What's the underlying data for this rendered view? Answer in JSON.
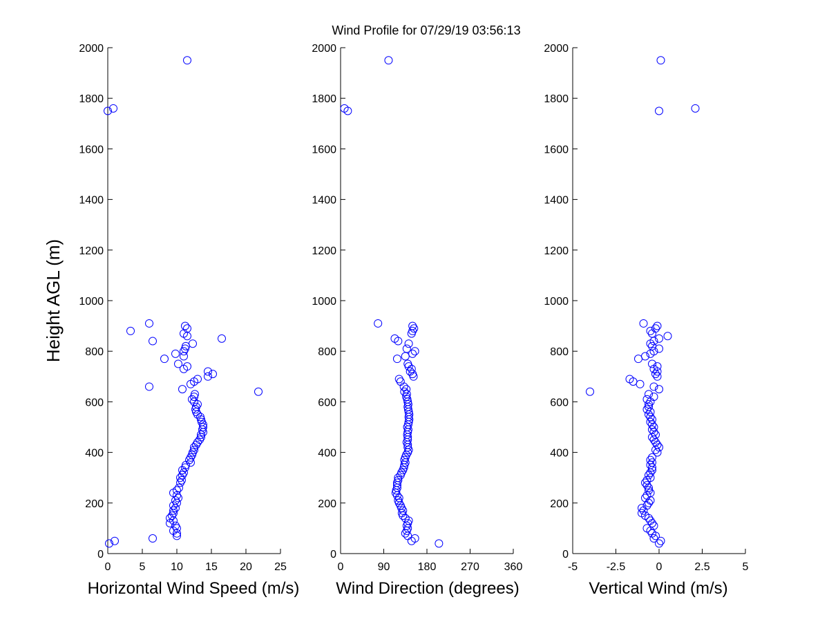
{
  "chart_data": {
    "type": "scatter",
    "title": "Wind Profile for  07/29/19 03:56:13",
    "ylabel": "Height AGL (m)",
    "ylim": [
      0,
      2000
    ],
    "yticks": [
      0,
      200,
      400,
      600,
      800,
      1000,
      1200,
      1400,
      1600,
      1800,
      2000
    ],
    "marker_color": "#0000ff",
    "panels": [
      {
        "name": "speed",
        "xlabel": "Horizontal Wind Speed (m/s)",
        "xlim": [
          0,
          25
        ],
        "xticks": [
          0,
          5,
          10,
          15,
          20,
          25
        ],
        "xtick_labels": [
          "0",
          "5",
          "10",
          "15",
          "20",
          "25"
        ],
        "points": [
          [
            0.2,
            40
          ],
          [
            1.0,
            50
          ],
          [
            6.5,
            60
          ],
          [
            10.0,
            70
          ],
          [
            10.0,
            80
          ],
          [
            9.5,
            90
          ],
          [
            10.0,
            100
          ],
          [
            9.8,
            110
          ],
          [
            9.0,
            120
          ],
          [
            9.5,
            130
          ],
          [
            9.0,
            140
          ],
          [
            9.3,
            150
          ],
          [
            9.5,
            160
          ],
          [
            9.5,
            170
          ],
          [
            9.8,
            180
          ],
          [
            9.5,
            190
          ],
          [
            10.0,
            200
          ],
          [
            9.8,
            210
          ],
          [
            10.2,
            220
          ],
          [
            10.0,
            230
          ],
          [
            9.5,
            240
          ],
          [
            10.0,
            250
          ],
          [
            10.3,
            260
          ],
          [
            10.5,
            280
          ],
          [
            10.7,
            290
          ],
          [
            10.5,
            300
          ],
          [
            10.8,
            310
          ],
          [
            11.0,
            320
          ],
          [
            10.8,
            330
          ],
          [
            11.2,
            340
          ],
          [
            11.3,
            350
          ],
          [
            12.0,
            360
          ],
          [
            11.8,
            370
          ],
          [
            12.0,
            380
          ],
          [
            12.2,
            390
          ],
          [
            12.3,
            400
          ],
          [
            12.5,
            410
          ],
          [
            12.5,
            420
          ],
          [
            12.8,
            430
          ],
          [
            13.0,
            440
          ],
          [
            13.3,
            450
          ],
          [
            13.5,
            460
          ],
          [
            13.5,
            470
          ],
          [
            13.8,
            480
          ],
          [
            13.7,
            490
          ],
          [
            13.8,
            500
          ],
          [
            13.8,
            510
          ],
          [
            13.6,
            520
          ],
          [
            13.5,
            530
          ],
          [
            13.4,
            540
          ],
          [
            13.0,
            550
          ],
          [
            12.8,
            560
          ],
          [
            12.7,
            570
          ],
          [
            12.8,
            580
          ],
          [
            13.0,
            590
          ],
          [
            12.5,
            600
          ],
          [
            12.2,
            610
          ],
          [
            12.5,
            620
          ],
          [
            12.6,
            630
          ],
          [
            21.8,
            640
          ],
          [
            10.8,
            650
          ],
          [
            6.0,
            660
          ],
          [
            12.0,
            670
          ],
          [
            12.5,
            680
          ],
          [
            13.0,
            690
          ],
          [
            14.5,
            700
          ],
          [
            15.2,
            710
          ],
          [
            14.5,
            720
          ],
          [
            11.0,
            730
          ],
          [
            11.5,
            740
          ],
          [
            10.2,
            750
          ],
          [
            8.2,
            770
          ],
          [
            11.0,
            780
          ],
          [
            9.8,
            790
          ],
          [
            11.0,
            800
          ],
          [
            11.2,
            810
          ],
          [
            11.3,
            820
          ],
          [
            12.3,
            830
          ],
          [
            6.5,
            840
          ],
          [
            16.5,
            850
          ],
          [
            11.5,
            860
          ],
          [
            11.0,
            870
          ],
          [
            3.3,
            880
          ],
          [
            11.5,
            890
          ],
          [
            11.2,
            900
          ],
          [
            6.0,
            910
          ],
          [
            0.0,
            1750
          ],
          [
            0.8,
            1760
          ],
          [
            11.5,
            1950
          ]
        ]
      },
      {
        "name": "direction",
        "xlabel": "Wind Direction (degrees)",
        "xlim": [
          0,
          360
        ],
        "xticks": [
          0,
          90,
          180,
          270,
          360
        ],
        "xtick_labels": [
          "0",
          "90",
          "180",
          "270",
          "360"
        ],
        "points": [
          [
            205,
            40
          ],
          [
            148,
            50
          ],
          [
            155,
            60
          ],
          [
            140,
            70
          ],
          [
            135,
            80
          ],
          [
            138,
            90
          ],
          [
            140,
            100
          ],
          [
            138,
            110
          ],
          [
            140,
            120
          ],
          [
            142,
            130
          ],
          [
            135,
            140
          ],
          [
            130,
            150
          ],
          [
            128,
            160
          ],
          [
            130,
            170
          ],
          [
            127,
            180
          ],
          [
            125,
            190
          ],
          [
            122,
            200
          ],
          [
            120,
            210
          ],
          [
            122,
            220
          ],
          [
            118,
            230
          ],
          [
            115,
            240
          ],
          [
            116,
            250
          ],
          [
            118,
            260
          ],
          [
            118,
            270
          ],
          [
            118,
            280
          ],
          [
            120,
            290
          ],
          [
            120,
            300
          ],
          [
            125,
            310
          ],
          [
            127,
            320
          ],
          [
            130,
            330
          ],
          [
            132,
            340
          ],
          [
            133,
            350
          ],
          [
            135,
            360
          ],
          [
            133,
            370
          ],
          [
            135,
            380
          ],
          [
            137,
            390
          ],
          [
            140,
            400
          ],
          [
            142,
            410
          ],
          [
            140,
            420
          ],
          [
            140,
            430
          ],
          [
            138,
            440
          ],
          [
            140,
            450
          ],
          [
            140,
            460
          ],
          [
            139,
            470
          ],
          [
            140,
            480
          ],
          [
            141,
            490
          ],
          [
            139,
            500
          ],
          [
            141,
            510
          ],
          [
            142,
            520
          ],
          [
            143,
            530
          ],
          [
            142,
            540
          ],
          [
            143,
            550
          ],
          [
            142,
            560
          ],
          [
            141,
            570
          ],
          [
            140,
            580
          ],
          [
            141,
            590
          ],
          [
            140,
            600
          ],
          [
            139,
            610
          ],
          [
            137,
            620
          ],
          [
            138,
            630
          ],
          [
            133,
            640
          ],
          [
            137,
            650
          ],
          [
            132,
            660
          ],
          [
            125,
            680
          ],
          [
            122,
            690
          ],
          [
            152,
            700
          ],
          [
            150,
            710
          ],
          [
            145,
            720
          ],
          [
            148,
            730
          ],
          [
            142,
            740
          ],
          [
            140,
            750
          ],
          [
            118,
            770
          ],
          [
            135,
            780
          ],
          [
            150,
            790
          ],
          [
            155,
            800
          ],
          [
            138,
            810
          ],
          [
            142,
            830
          ],
          [
            120,
            840
          ],
          [
            113,
            850
          ],
          [
            148,
            870
          ],
          [
            150,
            880
          ],
          [
            153,
            890
          ],
          [
            150,
            900
          ],
          [
            78,
            910
          ],
          [
            15,
            1750
          ],
          [
            8,
            1760
          ],
          [
            100,
            1950
          ]
        ]
      },
      {
        "name": "vertical",
        "xlabel": "Vertical Wind (m/s)",
        "xlim": [
          -5,
          5
        ],
        "xticks": [
          -5,
          -2.5,
          0,
          2.5,
          5
        ],
        "xtick_labels": [
          "-5",
          "-2.5",
          "0",
          "2.5",
          "5"
        ],
        "points": [
          [
            0.0,
            40
          ],
          [
            0.1,
            50
          ],
          [
            -0.3,
            60
          ],
          [
            -0.2,
            70
          ],
          [
            -0.4,
            80
          ],
          [
            -0.5,
            90
          ],
          [
            -0.7,
            100
          ],
          [
            -0.3,
            110
          ],
          [
            -0.4,
            120
          ],
          [
            -0.5,
            130
          ],
          [
            -0.6,
            140
          ],
          [
            -0.8,
            150
          ],
          [
            -1.0,
            160
          ],
          [
            -0.9,
            170
          ],
          [
            -1.0,
            180
          ],
          [
            -0.7,
            190
          ],
          [
            -0.6,
            200
          ],
          [
            -0.5,
            210
          ],
          [
            -0.8,
            220
          ],
          [
            -0.7,
            230
          ],
          [
            -0.5,
            240
          ],
          [
            -0.6,
            250
          ],
          [
            -0.6,
            260
          ],
          [
            -0.7,
            270
          ],
          [
            -0.8,
            280
          ],
          [
            -0.7,
            290
          ],
          [
            -0.5,
            300
          ],
          [
            -0.6,
            310
          ],
          [
            -0.5,
            320
          ],
          [
            -0.4,
            330
          ],
          [
            -0.4,
            340
          ],
          [
            -0.5,
            350
          ],
          [
            -0.4,
            360
          ],
          [
            -0.5,
            370
          ],
          [
            -0.4,
            380
          ],
          [
            -0.1,
            400
          ],
          [
            -0.2,
            410
          ],
          [
            0.0,
            420
          ],
          [
            -0.1,
            430
          ],
          [
            -0.2,
            440
          ],
          [
            -0.3,
            450
          ],
          [
            -0.4,
            460
          ],
          [
            -0.2,
            470
          ],
          [
            -0.3,
            480
          ],
          [
            -0.4,
            490
          ],
          [
            -0.3,
            500
          ],
          [
            -0.4,
            510
          ],
          [
            -0.5,
            520
          ],
          [
            -0.4,
            530
          ],
          [
            -0.5,
            540
          ],
          [
            -0.6,
            550
          ],
          [
            -0.5,
            560
          ],
          [
            -0.7,
            570
          ],
          [
            -0.6,
            580
          ],
          [
            -0.6,
            590
          ],
          [
            -0.5,
            600
          ],
          [
            -0.7,
            610
          ],
          [
            -0.3,
            620
          ],
          [
            -0.6,
            630
          ],
          [
            -4.0,
            640
          ],
          [
            0.0,
            650
          ],
          [
            -0.3,
            660
          ],
          [
            -1.1,
            670
          ],
          [
            -1.5,
            680
          ],
          [
            -1.7,
            690
          ],
          [
            -0.1,
            700
          ],
          [
            -0.2,
            710
          ],
          [
            -0.1,
            720
          ],
          [
            -0.3,
            730
          ],
          [
            -0.1,
            740
          ],
          [
            -0.4,
            750
          ],
          [
            -1.2,
            770
          ],
          [
            -0.8,
            780
          ],
          [
            -0.5,
            790
          ],
          [
            -0.3,
            800
          ],
          [
            0.0,
            810
          ],
          [
            -0.4,
            820
          ],
          [
            -0.5,
            830
          ],
          [
            -0.3,
            840
          ],
          [
            0.0,
            850
          ],
          [
            0.5,
            860
          ],
          [
            -0.4,
            870
          ],
          [
            -0.5,
            880
          ],
          [
            -0.2,
            890
          ],
          [
            -0.1,
            900
          ],
          [
            -0.9,
            910
          ],
          [
            0.0,
            1750
          ],
          [
            2.1,
            1760
          ],
          [
            0.1,
            1950
          ]
        ]
      }
    ]
  }
}
